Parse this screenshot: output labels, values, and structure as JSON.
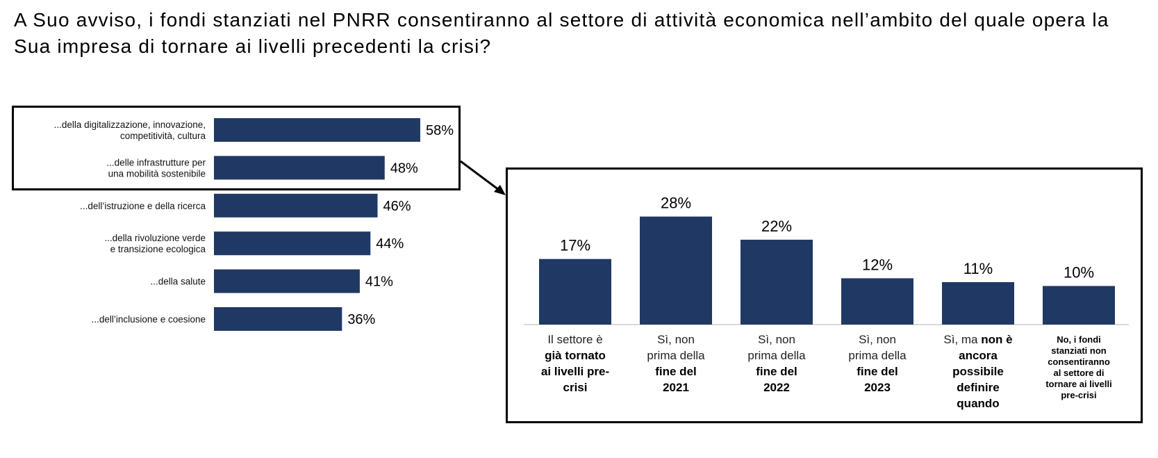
{
  "title": "A Suo avviso, i fondi stanziati nel PNRR consentiranno al settore di attività economica nell’ambito del quale opera la Sua impresa di tornare ai livelli precedenti la crisi?",
  "colors": {
    "bar": "#203864",
    "axis": "#d9d9d9",
    "box": "#000000"
  },
  "chart_data": [
    {
      "type": "bar",
      "orientation": "horizontal",
      "categories": [
        [
          "...della digitalizzazione, innovazione,",
          "competitività, cultura"
        ],
        [
          "...delle infrastrutture per",
          "una mobilità sostenibile"
        ],
        [
          "...dell’istruzione e della ricerca"
        ],
        [
          "...della rivoluzione verde",
          "e transizione ecologica"
        ],
        [
          "...della salute"
        ],
        [
          "...dell’inclusione e coesione"
        ]
      ],
      "values": [
        58,
        48,
        46,
        44,
        41,
        36
      ],
      "value_labels": [
        "58%",
        "48%",
        "46%",
        "44%",
        "41%",
        "36%"
      ],
      "unit": "%",
      "highlighted_categories": [
        0,
        1
      ]
    },
    {
      "type": "bar",
      "orientation": "vertical",
      "categories": [
        [
          {
            "t": "Il settore è",
            "b": false
          },
          {
            "t": "già tornato",
            "b": true
          },
          {
            "t": "ai livelli pre-",
            "b": true
          },
          {
            "t": "crisi",
            "b": true
          }
        ],
        [
          {
            "t": "Sì, non",
            "b": false
          },
          {
            "t": "prima della",
            "b": false
          },
          {
            "t": "fine del",
            "b": true
          },
          {
            "t": "2021",
            "b": true
          }
        ],
        [
          {
            "t": "Sì, non",
            "b": false
          },
          {
            "t": "prima della",
            "b": false
          },
          {
            "t": "fine del",
            "b": true
          },
          {
            "t": "2022",
            "b": true
          }
        ],
        [
          {
            "t": "Sì, non",
            "b": false
          },
          {
            "t": "prima della",
            "b": false
          },
          {
            "t": "fine del",
            "b": true
          },
          {
            "t": "2023",
            "b": true
          }
        ],
        [
          {
            "t": "Sì, ma ",
            "b": false,
            "inline": "non è"
          },
          {
            "t": "ancora",
            "b": true
          },
          {
            "t": "possibile",
            "b": true
          },
          {
            "t": "definire",
            "b": true
          },
          {
            "t": "quando",
            "b": true
          }
        ],
        [
          {
            "t": "No, i fondi",
            "b": true
          },
          {
            "t": "stanziati non",
            "b": true
          },
          {
            "t": "consentiranno",
            "b": true
          },
          {
            "t": "al settore di",
            "b": true
          },
          {
            "t": "tornare ai livelli",
            "b": true
          },
          {
            "t": "pre-crisi",
            "b": true
          }
        ]
      ],
      "small_label_index": 5,
      "values": [
        17,
        28,
        22,
        12,
        11,
        10
      ],
      "value_labels": [
        "17%",
        "28%",
        "22%",
        "12%",
        "11%",
        "10%"
      ],
      "unit": "%"
    }
  ]
}
